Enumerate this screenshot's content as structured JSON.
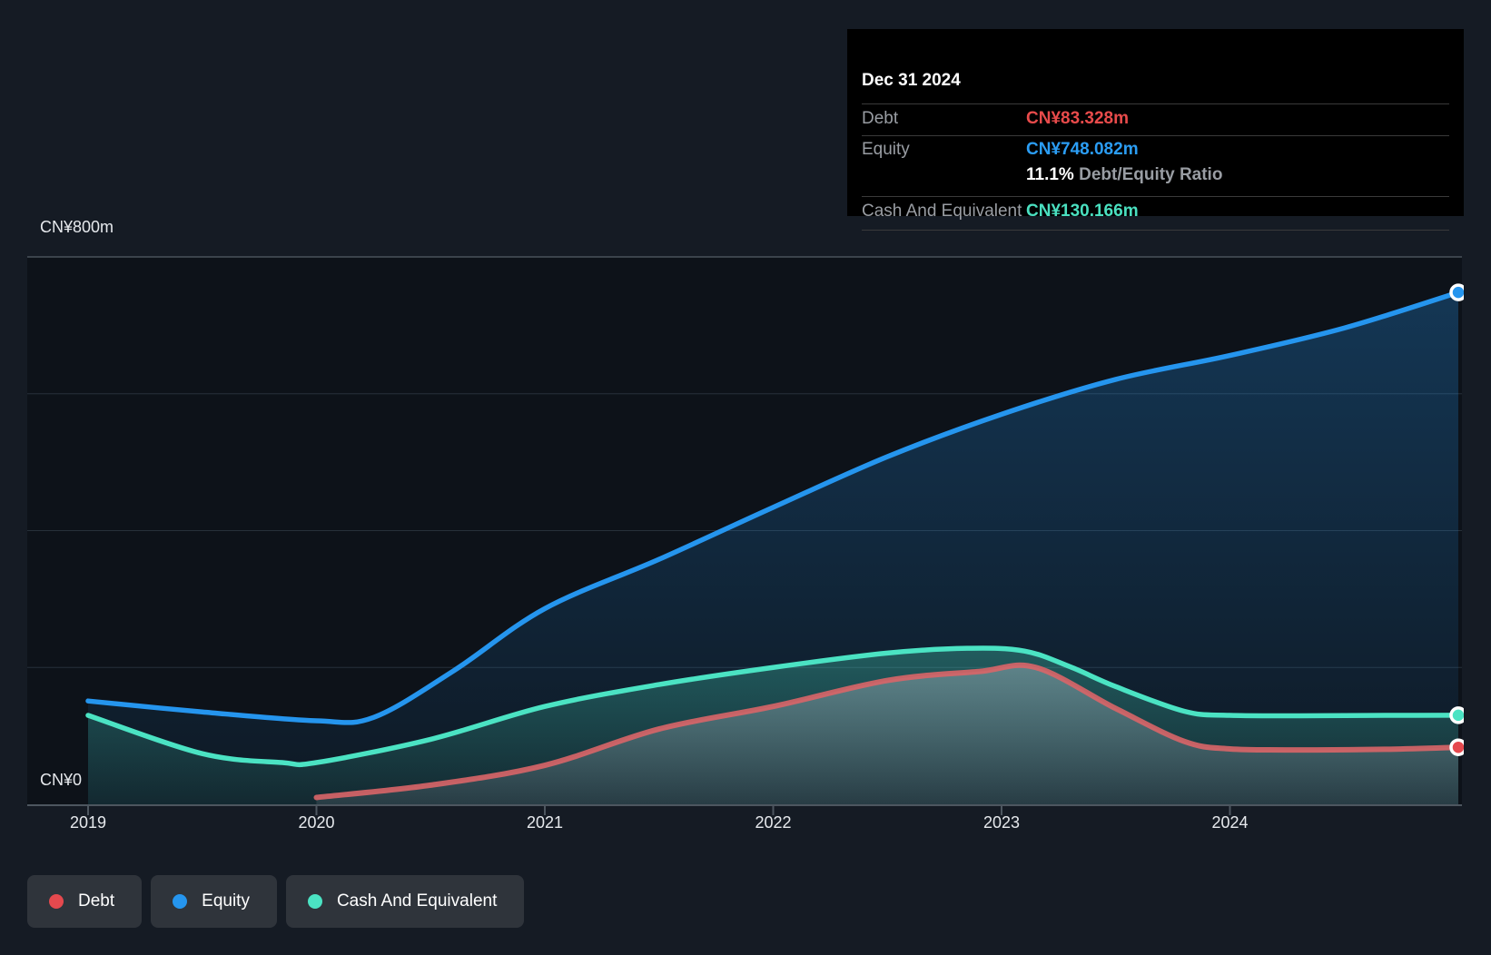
{
  "tooltip": {
    "title": "Dec 31 2024",
    "debt_label": "Debt",
    "debt_value": "CN¥83.328m",
    "equity_label": "Equity",
    "equity_value": "CN¥748.082m",
    "ratio_value": "11.1%",
    "ratio_label": " Debt/Equity Ratio",
    "cash_label": "Cash And Equivalent",
    "cash_value": "CN¥130.166m"
  },
  "axis": {
    "y_top_label": "CN¥800m",
    "y_zero_label": "CN¥0"
  },
  "legend": {
    "items": [
      {
        "label": "Debt",
        "color": "#e5494e"
      },
      {
        "label": "Equity",
        "color": "#2595ee"
      },
      {
        "label": "Cash And Equivalent",
        "color": "#4be3c3"
      }
    ]
  },
  "colors": {
    "debt_line": "#d96568",
    "debt_value_text": "#e84b4b",
    "equity_line": "#2595ee",
    "equity_value_text": "#2b9df4",
    "cash_line": "#4be3c3",
    "cash_value_text": "#4ae0c0",
    "grid_top": "#4a525b",
    "grid_mid": "#27303a",
    "axis_line": "#4d565f",
    "plot_bg_top": "#0d1219",
    "plot_bg_bottom": "#11161d"
  },
  "chart_data": {
    "type": "area",
    "title": "Debt to Equity history",
    "x_unit": "year",
    "y_unit": "CN¥ millions",
    "ylim": [
      0,
      800
    ],
    "y_gridline_step": 200,
    "y_labeled_gridlines": [
      "CN¥800m",
      "CN¥0"
    ],
    "x_tick_labels": [
      "2019",
      "2020",
      "2021",
      "2022",
      "2023",
      "2024"
    ],
    "x_tick_years": [
      2019,
      2020,
      2021,
      2022,
      2023,
      2024
    ],
    "x_end": 2025.0,
    "legend_position": "bottom-left",
    "series": [
      {
        "name": "Equity",
        "points": [
          [
            2019,
            151
          ],
          [
            2019.5,
            135
          ],
          [
            2020,
            122
          ],
          [
            2020.25,
            127
          ],
          [
            2020.6,
            195
          ],
          [
            2021,
            286
          ],
          [
            2021.5,
            358
          ],
          [
            2022,
            434
          ],
          [
            2022.5,
            508
          ],
          [
            2023,
            570
          ],
          [
            2023.5,
            621
          ],
          [
            2024,
            656
          ],
          [
            2024.5,
            696
          ],
          [
            2025,
            748.082
          ]
        ],
        "end_value_label": "CN¥748.082m"
      },
      {
        "name": "Cash And Equivalent",
        "points": [
          [
            2019,
            130
          ],
          [
            2019.5,
            74
          ],
          [
            2019.85,
            61
          ],
          [
            2020,
            61
          ],
          [
            2020.5,
            95
          ],
          [
            2021,
            143
          ],
          [
            2021.5,
            175
          ],
          [
            2022,
            200
          ],
          [
            2022.5,
            221
          ],
          [
            2022.85,
            228
          ],
          [
            2023.1,
            224
          ],
          [
            2023.3,
            201
          ],
          [
            2023.5,
            172
          ],
          [
            2023.8,
            136
          ],
          [
            2024,
            130
          ],
          [
            2024.4,
            129.5
          ],
          [
            2024.7,
            130
          ],
          [
            2025,
            130.166
          ]
        ],
        "end_value_label": "CN¥130.166m"
      },
      {
        "name": "Debt",
        "points": [
          [
            2020,
            10
          ],
          [
            2020.5,
            28
          ],
          [
            2021,
            57
          ],
          [
            2021.5,
            110
          ],
          [
            2022,
            143
          ],
          [
            2022.5,
            181
          ],
          [
            2022.9,
            194
          ],
          [
            2023.15,
            200
          ],
          [
            2023.5,
            140
          ],
          [
            2023.8,
            92
          ],
          [
            2024,
            81
          ],
          [
            2024.35,
            79.5
          ],
          [
            2024.7,
            80.5
          ],
          [
            2025,
            83.328
          ]
        ],
        "end_value_label": "CN¥83.328m"
      }
    ]
  }
}
